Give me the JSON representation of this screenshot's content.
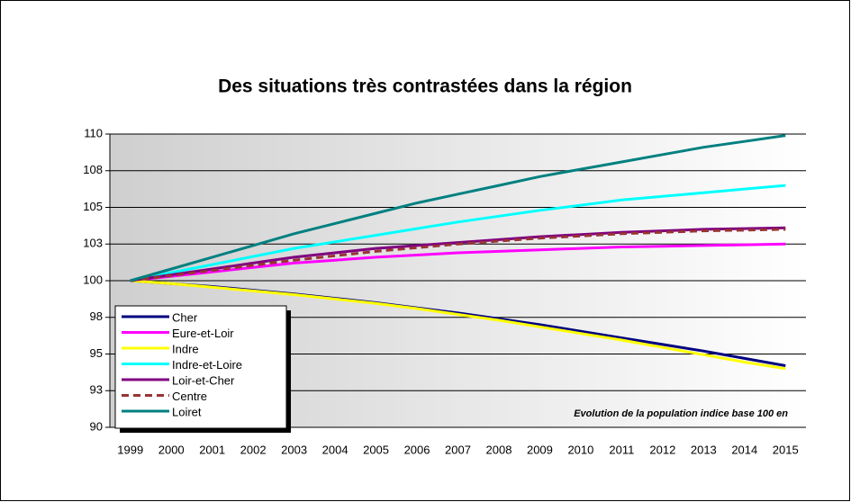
{
  "chart_data": {
    "type": "line",
    "title": "Des situations très contrastées dans la région",
    "annotation": "Evolution de la population indice base 100 en",
    "categories": [
      "1999",
      "2000",
      "2001",
      "2002",
      "2003",
      "2004",
      "2005",
      "2006",
      "2007",
      "2008",
      "2009",
      "2010",
      "2011",
      "2012",
      "2013",
      "2014",
      "2015"
    ],
    "ylim": [
      90,
      110
    ],
    "yticks": [
      90,
      {
        "value": 92.5,
        "label": "93"
      },
      95,
      {
        "value": 97.5,
        "label": "98"
      },
      100,
      {
        "value": 102.5,
        "label": "103"
      },
      105,
      {
        "value": 107.5,
        "label": "108"
      },
      110
    ],
    "grid": true,
    "legend": "bottom-left",
    "series": [
      {
        "name": "Cher",
        "color": "#000080",
        "values": [
          100,
          99.8,
          99.6,
          99.35,
          99.1,
          98.8,
          98.5,
          98.15,
          97.8,
          97.4,
          97.0,
          96.55,
          96.1,
          95.65,
          95.2,
          94.7,
          94.2
        ]
      },
      {
        "name": "Eure-et-Loir",
        "color": "#ff00ff",
        "values": [
          100,
          100.3,
          100.6,
          100.9,
          101.2,
          101.4,
          101.6,
          101.75,
          101.9,
          102.0,
          102.1,
          102.2,
          102.3,
          102.35,
          102.4,
          102.45,
          102.5
        ]
      },
      {
        "name": "Indre",
        "color": "#ffff00",
        "values": [
          100,
          99.8,
          99.55,
          99.3,
          99.05,
          98.75,
          98.45,
          98.1,
          97.7,
          97.3,
          96.85,
          96.4,
          95.95,
          95.45,
          94.95,
          94.45,
          94.0
        ]
      },
      {
        "name": "Indre-et-Loire",
        "color": "#00ffff",
        "values": [
          100,
          100.55,
          101.1,
          101.65,
          102.2,
          102.65,
          103.1,
          103.55,
          104.0,
          104.4,
          104.8,
          105.15,
          105.5,
          105.75,
          106.0,
          106.25,
          106.5
        ]
      },
      {
        "name": "Loir-et-Cher",
        "color": "#800080",
        "values": [
          100,
          100.4,
          100.8,
          101.2,
          101.6,
          101.9,
          102.2,
          102.4,
          102.6,
          102.8,
          103.0,
          103.15,
          103.3,
          103.4,
          103.5,
          103.55,
          103.6
        ]
      },
      {
        "name": "Centre",
        "color": "#993333",
        "dashed": true,
        "values": [
          100,
          100.35,
          100.7,
          101.05,
          101.4,
          101.7,
          102.0,
          102.25,
          102.5,
          102.7,
          102.9,
          103.05,
          103.2,
          103.3,
          103.4,
          103.45,
          103.5
        ]
      },
      {
        "name": "Loiret",
        "color": "#008080",
        "values": [
          100,
          100.8,
          101.6,
          102.4,
          103.2,
          103.9,
          104.6,
          105.3,
          105.9,
          106.5,
          107.1,
          107.6,
          108.1,
          108.6,
          109.1,
          109.5,
          109.9
        ]
      }
    ]
  }
}
